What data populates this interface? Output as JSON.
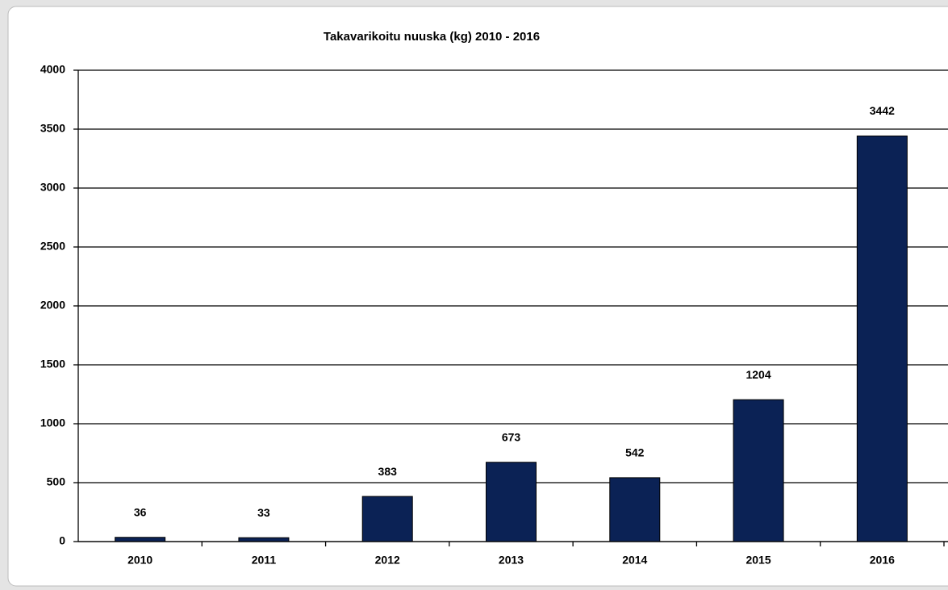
{
  "chart_data": {
    "type": "bar",
    "title": "Takavarikoitu nuuska (kg)  2010 - 2016",
    "categories": [
      "2010",
      "2011",
      "2012",
      "2013",
      "2014",
      "2015",
      "2016"
    ],
    "values": [
      36,
      33,
      383,
      673,
      542,
      1204,
      3442
    ],
    "color": "#0b2255",
    "ylim": [
      0,
      4000
    ],
    "yticks": [
      0,
      500,
      1000,
      1500,
      2000,
      2500,
      3000,
      3500,
      4000
    ],
    "grid": true,
    "data_labels": true
  }
}
